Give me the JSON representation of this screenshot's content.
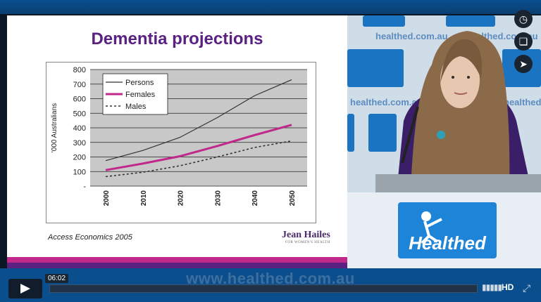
{
  "slide": {
    "title": "Dementia projections",
    "caption": "Access Economics 2005",
    "sponsor_logo": "Jean Hailes",
    "sponsor_sub": "FOR WOMEN'S HEALTH"
  },
  "chart_data": {
    "type": "line",
    "x": [
      2000,
      2010,
      2020,
      2030,
      2040,
      2050
    ],
    "ylabel": "'000 Australians",
    "ylim": [
      0,
      800
    ],
    "yticks": [
      0,
      100,
      200,
      300,
      400,
      500,
      600,
      700,
      800
    ],
    "ytick_labels": [
      "-",
      "100",
      "200",
      "300",
      "400",
      "500",
      "600",
      "700",
      "800"
    ],
    "series": [
      {
        "name": "Persons",
        "values": [
          175,
          245,
          335,
          470,
          620,
          730
        ],
        "color": "#333333"
      },
      {
        "name": "Females",
        "values": [
          110,
          155,
          205,
          275,
          350,
          420
        ],
        "color": "#c0288a"
      },
      {
        "name": "Males",
        "values": [
          65,
          95,
          140,
          200,
          265,
          310
        ],
        "color": "#333333"
      }
    ],
    "grid": true,
    "legend": "top-left"
  },
  "brand": {
    "name": "Healthed",
    "website": "healthed.com.au",
    "watermark_url": "www.healthed.com.au",
    "colors": {
      "blue": "#1e84d8",
      "purple": "#5a2180",
      "magenta": "#c0288a"
    }
  },
  "player": {
    "time": "06:02",
    "hd_label": "HD",
    "icons": [
      "play-icon",
      "volume-icon",
      "fullscreen-icon",
      "clock-icon",
      "layers-icon",
      "share-icon"
    ]
  }
}
